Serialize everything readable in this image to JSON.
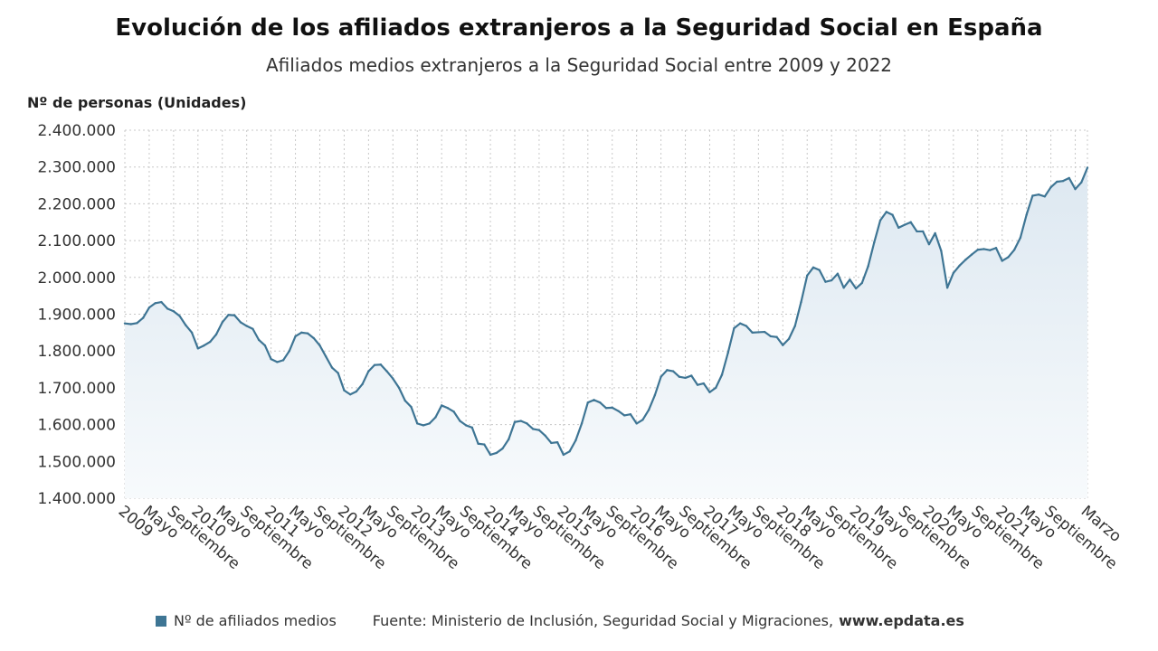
{
  "colors": {
    "line": "#3e7594",
    "area_top": "#dde8f1",
    "area_bottom": "#f7fafc",
    "grid": "#c8c8c8"
  },
  "chart_data": {
    "type": "area",
    "title": "Evolución de los afiliados extranjeros a la Seguridad Social en España",
    "subtitle": "Afiliados medios extranjeros a la Seguridad Social entre 2009 y 2022",
    "ylabel": "Nº de personas (Unidades)",
    "ylim": [
      1400000,
      2400000
    ],
    "yticks": [
      {
        "value": 1400000,
        "label": "1.400.000"
      },
      {
        "value": 1500000,
        "label": "1.500.000"
      },
      {
        "value": 1600000,
        "label": "1.600.000"
      },
      {
        "value": 1700000,
        "label": "1.700.000"
      },
      {
        "value": 1800000,
        "label": "1.800.000"
      },
      {
        "value": 1900000,
        "label": "1.900.000"
      },
      {
        "value": 2000000,
        "label": "2.000.000"
      },
      {
        "value": 2100000,
        "label": "2.100.000"
      },
      {
        "value": 2200000,
        "label": "2.200.000"
      },
      {
        "value": 2300000,
        "label": "2.300.000"
      },
      {
        "value": 2400000,
        "label": "2.400.000"
      }
    ],
    "xticks": [
      {
        "index": 0,
        "label": "2009"
      },
      {
        "index": 4,
        "label": "Mayo"
      },
      {
        "index": 8,
        "label": "Septiembre"
      },
      {
        "index": 12,
        "label": "2010"
      },
      {
        "index": 16,
        "label": "Mayo"
      },
      {
        "index": 20,
        "label": "Septiembre"
      },
      {
        "index": 24,
        "label": "2011"
      },
      {
        "index": 28,
        "label": "Mayo"
      },
      {
        "index": 32,
        "label": "Septiembre"
      },
      {
        "index": 36,
        "label": "2012"
      },
      {
        "index": 40,
        "label": "Mayo"
      },
      {
        "index": 44,
        "label": "Septiembre"
      },
      {
        "index": 48,
        "label": "2013"
      },
      {
        "index": 52,
        "label": "Mayo"
      },
      {
        "index": 56,
        "label": "Septiembre"
      },
      {
        "index": 60,
        "label": "2014"
      },
      {
        "index": 64,
        "label": "Mayo"
      },
      {
        "index": 68,
        "label": "Septiembre"
      },
      {
        "index": 72,
        "label": "2015"
      },
      {
        "index": 76,
        "label": "Mayo"
      },
      {
        "index": 80,
        "label": "Septiembre"
      },
      {
        "index": 84,
        "label": "2016"
      },
      {
        "index": 88,
        "label": "Mayo"
      },
      {
        "index": 92,
        "label": "Septiembre"
      },
      {
        "index": 96,
        "label": "2017"
      },
      {
        "index": 100,
        "label": "Mayo"
      },
      {
        "index": 104,
        "label": "Septiembre"
      },
      {
        "index": 108,
        "label": "2018"
      },
      {
        "index": 112,
        "label": "Mayo"
      },
      {
        "index": 116,
        "label": "Septiembre"
      },
      {
        "index": 120,
        "label": "2019"
      },
      {
        "index": 124,
        "label": "Mayo"
      },
      {
        "index": 128,
        "label": "Septiembre"
      },
      {
        "index": 132,
        "label": "2020"
      },
      {
        "index": 136,
        "label": "Mayo"
      },
      {
        "index": 140,
        "label": "Septiembre"
      },
      {
        "index": 144,
        "label": "2021"
      },
      {
        "index": 148,
        "label": "Mayo"
      },
      {
        "index": 152,
        "label": "Septiembre"
      },
      {
        "index": 158,
        "label": "Marzo"
      }
    ],
    "series": [
      {
        "name": "Nº de afiliados medios",
        "values": [
          1875000,
          1873000,
          1876000,
          1890000,
          1918000,
          1930000,
          1933000,
          1915000,
          1908000,
          1895000,
          1870000,
          1850000,
          1807000,
          1815000,
          1825000,
          1845000,
          1878000,
          1898000,
          1897000,
          1878000,
          1868000,
          1860000,
          1830000,
          1815000,
          1778000,
          1770000,
          1775000,
          1800000,
          1840000,
          1850000,
          1848000,
          1835000,
          1815000,
          1785000,
          1755000,
          1740000,
          1693000,
          1682000,
          1690000,
          1710000,
          1745000,
          1762000,
          1763000,
          1745000,
          1725000,
          1700000,
          1665000,
          1648000,
          1603000,
          1598000,
          1603000,
          1620000,
          1652000,
          1645000,
          1635000,
          1610000,
          1598000,
          1592000,
          1548000,
          1546000,
          1518000,
          1523000,
          1535000,
          1560000,
          1607000,
          1610000,
          1603000,
          1588000,
          1585000,
          1570000,
          1550000,
          1552000,
          1518000,
          1527000,
          1557000,
          1603000,
          1660000,
          1667000,
          1660000,
          1645000,
          1646000,
          1637000,
          1625000,
          1628000,
          1603000,
          1613000,
          1640000,
          1680000,
          1730000,
          1748000,
          1745000,
          1730000,
          1727000,
          1733000,
          1708000,
          1712000,
          1688000,
          1700000,
          1735000,
          1795000,
          1862000,
          1875000,
          1868000,
          1850000,
          1851000,
          1852000,
          1840000,
          1838000,
          1816000,
          1833000,
          1868000,
          1933000,
          2005000,
          2027000,
          2020000,
          1988000,
          1992000,
          2010000,
          1972000,
          1994000,
          1970000,
          1985000,
          2030000,
          2095000,
          2155000,
          2178000,
          2170000,
          2135000,
          2143000,
          2150000,
          2125000,
          2125000,
          2090000,
          2120000,
          2072000,
          1972000,
          2012000,
          2032000,
          2048000,
          2062000,
          2075000,
          2077000,
          2074000,
          2080000,
          2045000,
          2055000,
          2075000,
          2108000,
          2170000,
          2222000,
          2225000,
          2220000,
          2245000,
          2260000,
          2262000,
          2270000,
          2240000,
          2258000,
          2298000
        ]
      }
    ]
  },
  "footer": {
    "legend_label": "Nº de afiliados medios",
    "source": "Fuente: Ministerio de Inclusión, Seguridad Social y Migraciones,",
    "url": "www.epdata.es"
  }
}
